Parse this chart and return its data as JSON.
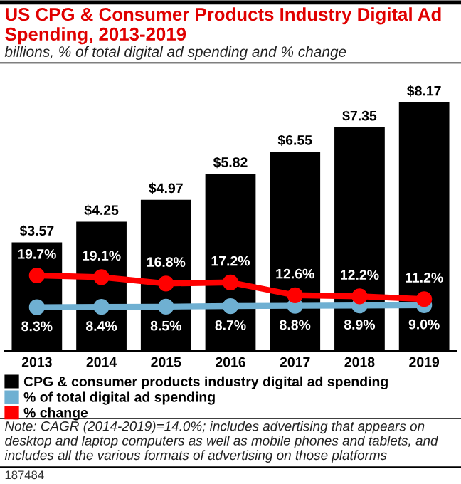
{
  "chart_data": {
    "type": "bar",
    "title": "US CPG & Consumer Products Industry Digital Ad Spending, 2013-2019",
    "subtitle": "billions, % of total digital ad spending and % change",
    "categories": [
      "2013",
      "2014",
      "2015",
      "2016",
      "2017",
      "2018",
      "2019"
    ],
    "series": [
      {
        "name": "CPG & consumer products industry digital ad spending",
        "color": "#000000",
        "values": [
          3.57,
          4.25,
          4.97,
          5.82,
          6.55,
          7.35,
          8.17
        ],
        "value_labels": [
          "$3.57",
          "$4.25",
          "$4.97",
          "$5.82",
          "$6.55",
          "$7.35",
          "$8.17"
        ]
      },
      {
        "name": "% of total digital ad spending",
        "type": "line",
        "axis": "y2",
        "color": "#6fb0d2",
        "marker": "circle",
        "values": [
          8.3,
          8.4,
          8.5,
          8.7,
          8.8,
          8.9,
          9.0
        ],
        "value_labels": [
          "8.3%",
          "8.4%",
          "8.5%",
          "8.7%",
          "8.8%",
          "8.9%",
          "9.0%"
        ]
      },
      {
        "name": "% change",
        "type": "line",
        "axis": "y2",
        "color": "#ff0000",
        "marker": "circle",
        "values": [
          19.7,
          19.1,
          16.8,
          17.2,
          12.6,
          12.2,
          11.2
        ],
        "value_labels": [
          "19.7%",
          "19.1%",
          "16.8%",
          "17.2%",
          "12.6%",
          "12.2%",
          "11.2%"
        ]
      }
    ],
    "legend": "bottom",
    "grid": false,
    "annotations": [
      "Note: CAGR (2014-2019)=14.0%; includes advertising that appears on desktop and laptop computers as well as mobile phones and tablets, and includes all the various formats of advertising on those platforms",
      "187484"
    ]
  }
}
